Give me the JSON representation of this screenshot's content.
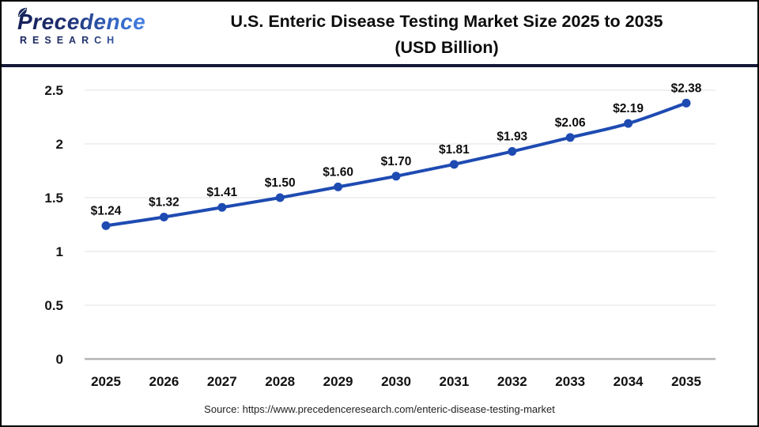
{
  "header": {
    "logo_line1": "Precedence",
    "logo_line2": "RESEARCH",
    "title_line1": "U.S. Enteric Disease Testing Market Size 2025 to 2035",
    "title_line2": "(USD Billion)"
  },
  "chart_data": {
    "type": "line",
    "title": "U.S. Enteric Disease Testing Market Size 2025 to 2035 (USD Billion)",
    "categories": [
      2025,
      2026,
      2027,
      2028,
      2029,
      2030,
      2031,
      2032,
      2033,
      2034,
      2035
    ],
    "values": [
      1.24,
      1.32,
      1.41,
      1.5,
      1.6,
      1.7,
      1.81,
      1.93,
      2.06,
      2.19,
      2.38
    ],
    "labels": [
      "$1.24",
      "$1.32",
      "$1.41",
      "$1.50",
      "$1.60",
      "$1.70",
      "$1.81",
      "$1.93",
      "$2.06",
      "$2.19",
      "$2.38"
    ],
    "xlabel": "",
    "ylabel": "",
    "ylim": [
      0,
      2.5
    ],
    "yticks": [
      0,
      0.5,
      1,
      1.5,
      2,
      2.5
    ],
    "grid": true,
    "legend": "none",
    "line_color": "#1e4bb2",
    "marker_color": "#1e4bb2",
    "gridline_color": "#e8e8e8",
    "axis_line_color": "#b5b5b5"
  },
  "footer": {
    "source": "Source: https://www.precedenceresearch.com/enteric-disease-testing-market"
  }
}
